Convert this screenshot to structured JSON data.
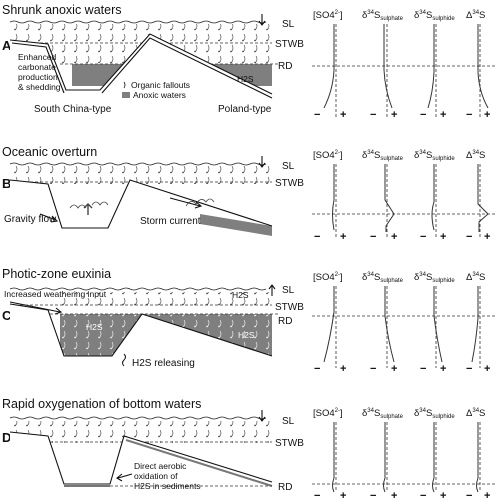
{
  "header_labels": {
    "so4": "[SO4",
    "so4_sup": "2-",
    "so4_close": "]",
    "delta_sulphate": "δ",
    "d_sulphate_mass": "34",
    "d_sulphate_main": "S",
    "d_sulphate_sub": "sulphate",
    "delta_sulphide": "δ",
    "d_sulphide_mass": "34",
    "d_sulphide_main": "S",
    "d_sulphide_sub": "sulphide",
    "cap_delta": "Δ",
    "cap_mass": "34",
    "cap_main": "S"
  },
  "signs": {
    "minus": "−",
    "plus": "+"
  },
  "panels": [
    {
      "letter": "A",
      "title": "Shrunk anoxic waters",
      "sl": "SL",
      "stwb": "STWB",
      "rd": "RD",
      "notes": [
        "Enhanced",
        "carbonate",
        "production",
        "& shedding"
      ],
      "legend_organic": "Organic fallouts",
      "legend_anoxic": "Anoxic waters",
      "h2s": "H2S",
      "type_left": "South China-type",
      "type_right": "Poland-type"
    },
    {
      "letter": "B",
      "title": "Oceanic overturn",
      "sl": "SL",
      "stwb": "STWB",
      "gravity": "Gravity flow",
      "storm": "Storm current"
    },
    {
      "letter": "C",
      "title": "Photic-zone euxinia",
      "sl": "SL",
      "stwb": "STWB",
      "rd": "RD",
      "weathering": "Increased weathering input",
      "h2s_top": "H2S",
      "h2s_a": "H2S",
      "h2s_b": "H2S",
      "h2s_release": "H2S releasing"
    },
    {
      "letter": "D",
      "title": "Rapid oxygenation of bottom waters",
      "sl": "SL",
      "stwb": "STWB",
      "rd": "RD",
      "oxidation": [
        "Direct aerobic",
        "oxidation of",
        "H2S in sediments"
      ]
    }
  ]
}
